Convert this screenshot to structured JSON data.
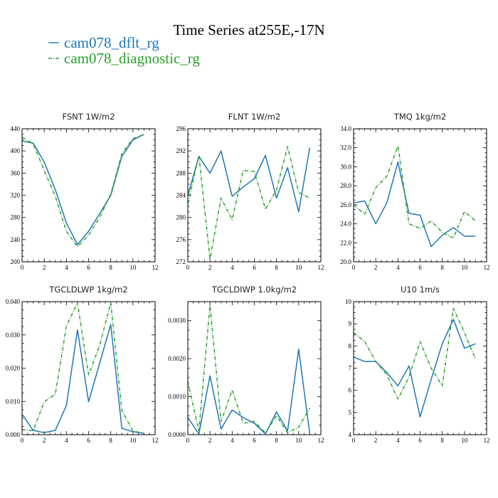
{
  "title": "Time Series at255E,-17N",
  "legend": [
    {
      "label": "cam078_dflt_rg",
      "color": "#1f77b4"
    },
    {
      "label": "cam078_diagnostic_rg",
      "color": "#2ca02c"
    }
  ],
  "chart_data": [
    {
      "type": "line",
      "title": "FSNT  1W/m2",
      "xlim": [
        0,
        12
      ],
      "ylim": [
        200,
        440
      ],
      "xticks": [
        0,
        2,
        4,
        6,
        8,
        10,
        12
      ],
      "yticks": [
        200,
        240,
        280,
        320,
        360,
        400,
        440
      ],
      "ytick_labels": [
        "200",
        "240",
        "280",
        "320",
        "360",
        "400",
        "440"
      ],
      "x": [
        0,
        1,
        2,
        3,
        4,
        5,
        6,
        7,
        8,
        9,
        10,
        11
      ],
      "series": [
        {
          "name": "cam078_dflt_rg",
          "values": [
            418,
            414,
            380,
            330,
            270,
            231,
            255,
            287,
            320,
            390,
            420,
            430
          ],
          "color": "#1f77b4",
          "dash": ""
        },
        {
          "name": "cam078_diagnostic_rg",
          "values": [
            425,
            413,
            365,
            318,
            255,
            227,
            248,
            280,
            322,
            395,
            422,
            430
          ],
          "color": "#2ca02c",
          "dash": "5,2,1,2"
        }
      ]
    },
    {
      "type": "line",
      "title": "FLNT  1W/m2",
      "xlim": [
        0,
        12
      ],
      "ylim": [
        272,
        296
      ],
      "xticks": [
        0,
        2,
        4,
        6,
        8,
        10,
        12
      ],
      "yticks": [
        272,
        276,
        280,
        284,
        288,
        292,
        296
      ],
      "ytick_labels": [
        "272",
        "276",
        "280",
        "284",
        "288",
        "292",
        "296"
      ],
      "x": [
        0,
        1,
        2,
        3,
        4,
        5,
        6,
        7,
        8,
        9,
        10,
        11
      ],
      "series": [
        {
          "name": "cam078_dflt_rg",
          "values": [
            284.0,
            291.0,
            288.0,
            292.0,
            283.8,
            285.5,
            287.0,
            291.2,
            283.5,
            289.0,
            281.0,
            292.6
          ],
          "color": "#1f77b4",
          "dash": ""
        },
        {
          "name": "cam078_diagnostic_rg",
          "values": [
            282.5,
            291.2,
            272.5,
            283.5,
            279.6,
            288.5,
            288.3,
            281.5,
            285.0,
            292.8,
            284.5,
            283.5
          ],
          "color": "#2ca02c",
          "dash": "5,2,1,2"
        }
      ]
    },
    {
      "type": "line",
      "title": "TMQ  1kg/m2",
      "xlim": [
        0,
        12
      ],
      "ylim": [
        20,
        34
      ],
      "xticks": [
        0,
        2,
        4,
        6,
        8,
        10,
        12
      ],
      "yticks": [
        20,
        22,
        24,
        26,
        28,
        30,
        32,
        34
      ],
      "ytick_labels": [
        "20.0",
        "22.0",
        "24.0",
        "26.0",
        "28.0",
        "30.0",
        "32.0",
        "34.0"
      ],
      "x": [
        0,
        1,
        2,
        3,
        4,
        5,
        6,
        7,
        8,
        9,
        10,
        11
      ],
      "series": [
        {
          "name": "cam078_dflt_rg",
          "values": [
            26.2,
            26.4,
            24.0,
            26.2,
            30.5,
            25.1,
            24.9,
            21.6,
            22.8,
            23.6,
            22.7,
            22.7
          ],
          "color": "#1f77b4",
          "dash": ""
        },
        {
          "name": "cam078_diagnostic_rg",
          "values": [
            26.0,
            25.0,
            27.8,
            29.0,
            32.2,
            24.0,
            23.5,
            24.3,
            23.1,
            22.5,
            25.3,
            24.3
          ],
          "color": "#2ca02c",
          "dash": "5,2,1,2"
        }
      ]
    },
    {
      "type": "line",
      "title": "TGCLDLWP  1kg/m2",
      "xlim": [
        0,
        12
      ],
      "ylim": [
        0,
        0.04
      ],
      "xticks": [
        0,
        2,
        4,
        6,
        8,
        10,
        12
      ],
      "yticks": [
        0,
        0.01,
        0.02,
        0.03,
        0.04
      ],
      "ytick_labels": [
        "0.000",
        "0.010",
        "0.020",
        "0.030",
        "0.040"
      ],
      "x": [
        0,
        1,
        2,
        3,
        4,
        5,
        6,
        7,
        8,
        9,
        10,
        11
      ],
      "series": [
        {
          "name": "cam078_dflt_rg",
          "values": [
            0.0062,
            0.0013,
            0.0006,
            0.0013,
            0.0088,
            0.0315,
            0.0099,
            0.0215,
            0.0331,
            0.0019,
            0.0009,
            0.0004
          ],
          "color": "#1f77b4",
          "dash": ""
        },
        {
          "name": "cam078_diagnostic_rg",
          "values": [
            0.0015,
            0.0012,
            0.0099,
            0.0122,
            0.0326,
            0.0397,
            0.018,
            0.0268,
            0.0397,
            0.0073,
            0.0011,
            0.0004
          ],
          "color": "#2ca02c",
          "dash": "5,2,1,2"
        }
      ]
    },
    {
      "type": "line",
      "title": "TGCLDIWP  1.0kg/m2",
      "xlim": [
        0,
        12
      ],
      "ylim": [
        0,
        0.0035
      ],
      "xticks": [
        0,
        2,
        4,
        6,
        8,
        10,
        12
      ],
      "yticks": [
        0,
        0.001,
        0.002,
        0.003
      ],
      "ytick_labels": [
        "0.0000",
        "0.0010",
        "0.0020",
        "0.0030"
      ],
      "x": [
        0,
        1,
        2,
        3,
        4,
        5,
        6,
        7,
        8,
        9,
        10,
        11
      ],
      "series": [
        {
          "name": "cam078_dflt_rg",
          "values": [
            0.00045,
            2e-05,
            0.00155,
            0.00015,
            0.00065,
            0.00045,
            0.0003,
            2e-05,
            0.0006,
            0.0001,
            0.00225,
            2e-05
          ],
          "color": "#1f77b4",
          "dash": ""
        },
        {
          "name": "cam078_diagnostic_rg",
          "values": [
            0.0014,
            0.0001,
            0.0034,
            0.00035,
            0.00118,
            0.0003,
            0.00035,
            5e-05,
            0.0005,
            5e-05,
            0.0002,
            0.0007
          ],
          "color": "#2ca02c",
          "dash": "5,2,1,2"
        }
      ]
    },
    {
      "type": "line",
      "title": "U10  1m/s",
      "xlim": [
        0,
        12
      ],
      "ylim": [
        4,
        10
      ],
      "xticks": [
        0,
        2,
        4,
        6,
        8,
        10,
        12
      ],
      "yticks": [
        4,
        5,
        6,
        7,
        8,
        9,
        10
      ],
      "ytick_labels": [
        "4",
        "5",
        "6",
        "7",
        "8",
        "9",
        "10"
      ],
      "x": [
        0,
        1,
        2,
        3,
        4,
        5,
        6,
        7,
        8,
        9,
        10,
        11
      ],
      "series": [
        {
          "name": "cam078_dflt_rg",
          "values": [
            7.5,
            7.3,
            7.3,
            6.8,
            6.2,
            7.1,
            4.8,
            6.5,
            8.1,
            9.2,
            7.9,
            8.1
          ],
          "color": "#1f77b4",
          "dash": ""
        },
        {
          "name": "cam078_diagnostic_rg",
          "values": [
            8.6,
            8.2,
            7.3,
            6.7,
            5.6,
            6.6,
            8.2,
            7.0,
            6.2,
            9.7,
            8.6,
            7.4
          ],
          "color": "#2ca02c",
          "dash": "5,2,1,2"
        }
      ]
    }
  ]
}
